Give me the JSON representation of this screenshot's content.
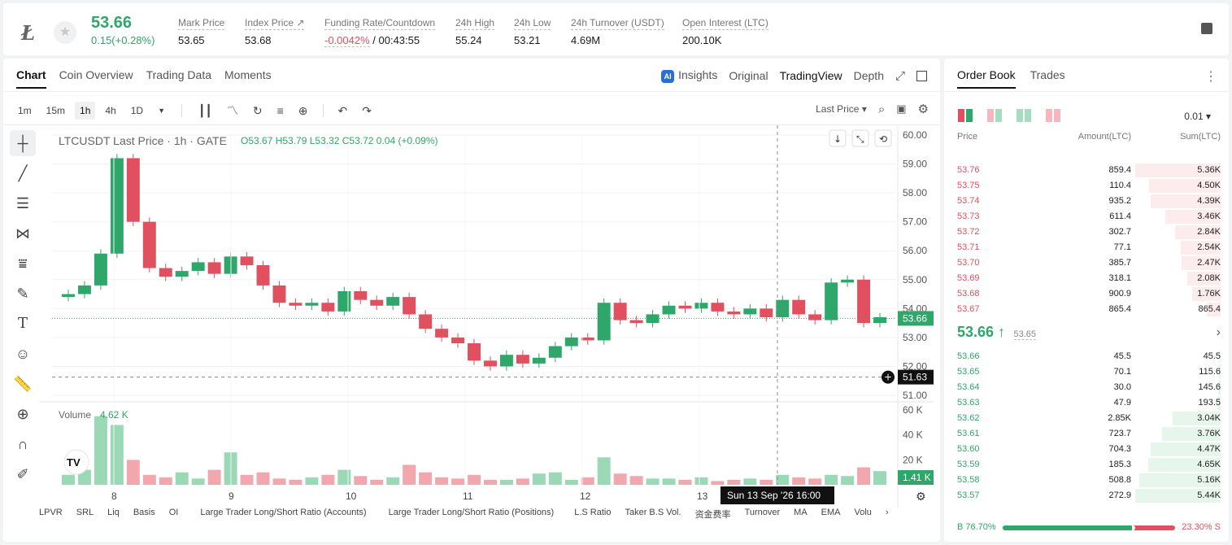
{
  "ticker": {
    "last": "53.66",
    "change": "0.15(+0.28%)",
    "stats": [
      {
        "label": "Mark Price",
        "value": "53.65"
      },
      {
        "label": "Index Price ↗",
        "value": "53.68"
      },
      {
        "label": "Funding Rate/Countdown",
        "value_neg": "-0.0042%",
        "value": " / 00:43:55"
      },
      {
        "label": "24h High",
        "value": "55.24"
      },
      {
        "label": "24h Low",
        "value": "53.21"
      },
      {
        "label": "24h Turnover (USDT)",
        "value": "4.69M"
      },
      {
        "label": "Open Interest (LTC)",
        "value": "200.10K"
      }
    ]
  },
  "chart_tabs": [
    "Chart",
    "Coin Overview",
    "Trading Data",
    "Moments"
  ],
  "view_tabs": {
    "insights": "Insights",
    "original": "Original",
    "tradingview": "TradingView",
    "depth": "Depth"
  },
  "timeframes": [
    "1m",
    "15m",
    "1h",
    "4h",
    "1D"
  ],
  "price_source": "Last Price ▾",
  "legend": {
    "title": "LTCUSDT Last Price · 1h · GATE",
    "o": "O53.67",
    "h": "H53.79",
    "l": "L53.32",
    "c": "C53.72",
    "chg": "0.04 (+0.09%)"
  },
  "volume_label": "Volume",
  "volume_value": "4.62 K",
  "crosshair_date": "Sun 13 Sep '26   16:00",
  "crosshair_price": "51.63",
  "last_price_tag": "53.66",
  "last_vol_tag": "1.41 K",
  "indicators": [
    "LPVR",
    "SRL",
    "Liq",
    "Basis",
    "OI",
    "Large Trader Long/Short Ratio (Accounts)",
    "Large Trader Long/Short Ratio (Positions)",
    "L.S Ratio",
    "Taker B.S Vol.",
    "资金费率",
    "Turnover",
    "MA",
    "EMA",
    "Volu"
  ],
  "chart_data": {
    "type": "candlestick",
    "price_axis": [
      "60.00",
      "59.00",
      "58.00",
      "57.00",
      "56.00",
      "55.00",
      "54.00",
      "53.00",
      "52.00",
      "51.00"
    ],
    "ylim": [
      51,
      60
    ],
    "volume_axis": [
      "60 K",
      "40 K",
      "20 K"
    ],
    "volume_ylim": [
      0,
      60
    ],
    "x_labels": [
      "8",
      "9",
      "10",
      "11",
      "12",
      "13"
    ],
    "close_series": [
      54.5,
      54.8,
      55.9,
      59.2,
      57.0,
      55.4,
      55.1,
      55.3,
      55.6,
      55.2,
      55.8,
      55.5,
      54.8,
      54.2,
      54.1,
      54.2,
      53.9,
      54.6,
      54.3,
      54.1,
      54.4,
      53.8,
      53.3,
      53.0,
      52.8,
      52.2,
      52.0,
      52.4,
      52.1,
      52.3,
      52.7,
      53.0,
      52.9,
      54.2,
      53.6,
      53.5,
      53.8,
      54.1,
      54.0,
      54.2,
      53.9,
      53.8,
      54.0,
      53.7,
      54.3,
      53.8,
      53.6,
      54.9,
      55.0,
      53.5,
      53.7
    ],
    "volume_series": [
      8,
      12,
      55,
      48,
      20,
      8,
      6,
      10,
      5,
      12,
      26,
      8,
      10,
      5,
      4,
      6,
      8,
      12,
      7,
      4,
      6,
      16,
      10,
      6,
      5,
      8,
      4,
      4,
      5,
      9,
      10,
      4,
      6,
      22,
      9,
      7,
      5,
      5,
      4,
      6,
      3,
      4,
      5,
      4,
      8,
      6,
      5,
      8,
      7,
      14,
      11
    ]
  },
  "orderbook": {
    "tabs": [
      "Order Book",
      "Trades"
    ],
    "precision": "0.01 ▾",
    "head": {
      "price": "Price",
      "amount": "Amount(LTC)",
      "sum": "Sum(LTC)"
    },
    "asks": [
      {
        "p": "53.76",
        "a": "859.4",
        "s": "5.36K",
        "d": 1.0
      },
      {
        "p": "53.75",
        "a": "110.4",
        "s": "4.50K",
        "d": 0.84
      },
      {
        "p": "53.74",
        "a": "935.2",
        "s": "4.39K",
        "d": 0.82
      },
      {
        "p": "53.73",
        "a": "611.4",
        "s": "3.46K",
        "d": 0.65
      },
      {
        "p": "53.72",
        "a": "302.7",
        "s": "2.84K",
        "d": 0.53
      },
      {
        "p": "53.71",
        "a": "77.1",
        "s": "2.54K",
        "d": 0.47
      },
      {
        "p": "53.70",
        "a": "385.7",
        "s": "2.47K",
        "d": 0.46
      },
      {
        "p": "53.69",
        "a": "318.1",
        "s": "2.08K",
        "d": 0.39
      },
      {
        "p": "53.68",
        "a": "900.9",
        "s": "1.76K",
        "d": 0.33
      },
      {
        "p": "53.67",
        "a": "865.4",
        "s": "865.4",
        "d": 0.16
      }
    ],
    "mid_price": "53.66 ↑",
    "mid_mark": "53.65",
    "bids": [
      {
        "p": "53.66",
        "a": "45.5",
        "s": "45.5",
        "d": 0.01
      },
      {
        "p": "53.65",
        "a": "70.1",
        "s": "115.6",
        "d": 0.02
      },
      {
        "p": "53.64",
        "a": "30.0",
        "s": "145.6",
        "d": 0.03
      },
      {
        "p": "53.63",
        "a": "47.9",
        "s": "193.5",
        "d": 0.04
      },
      {
        "p": "53.62",
        "a": "2.85K",
        "s": "3.04K",
        "d": 0.56
      },
      {
        "p": "53.61",
        "a": "723.7",
        "s": "3.76K",
        "d": 0.69
      },
      {
        "p": "53.60",
        "a": "704.3",
        "s": "4.47K",
        "d": 0.82
      },
      {
        "p": "53.59",
        "a": "185.3",
        "s": "4.65K",
        "d": 0.85
      },
      {
        "p": "53.58",
        "a": "508.8",
        "s": "5.16K",
        "d": 0.95
      },
      {
        "p": "53.57",
        "a": "272.9",
        "s": "5.44K",
        "d": 1.0
      }
    ],
    "buy_ratio": "B 76.70%",
    "sell_ratio": "23.30% S",
    "buy_fraction": 0.767
  },
  "colors": {
    "up": "#2fa66a",
    "down": "#e0505e",
    "up_soft": "#e6f6ec",
    "down_soft": "#fdecee"
  }
}
